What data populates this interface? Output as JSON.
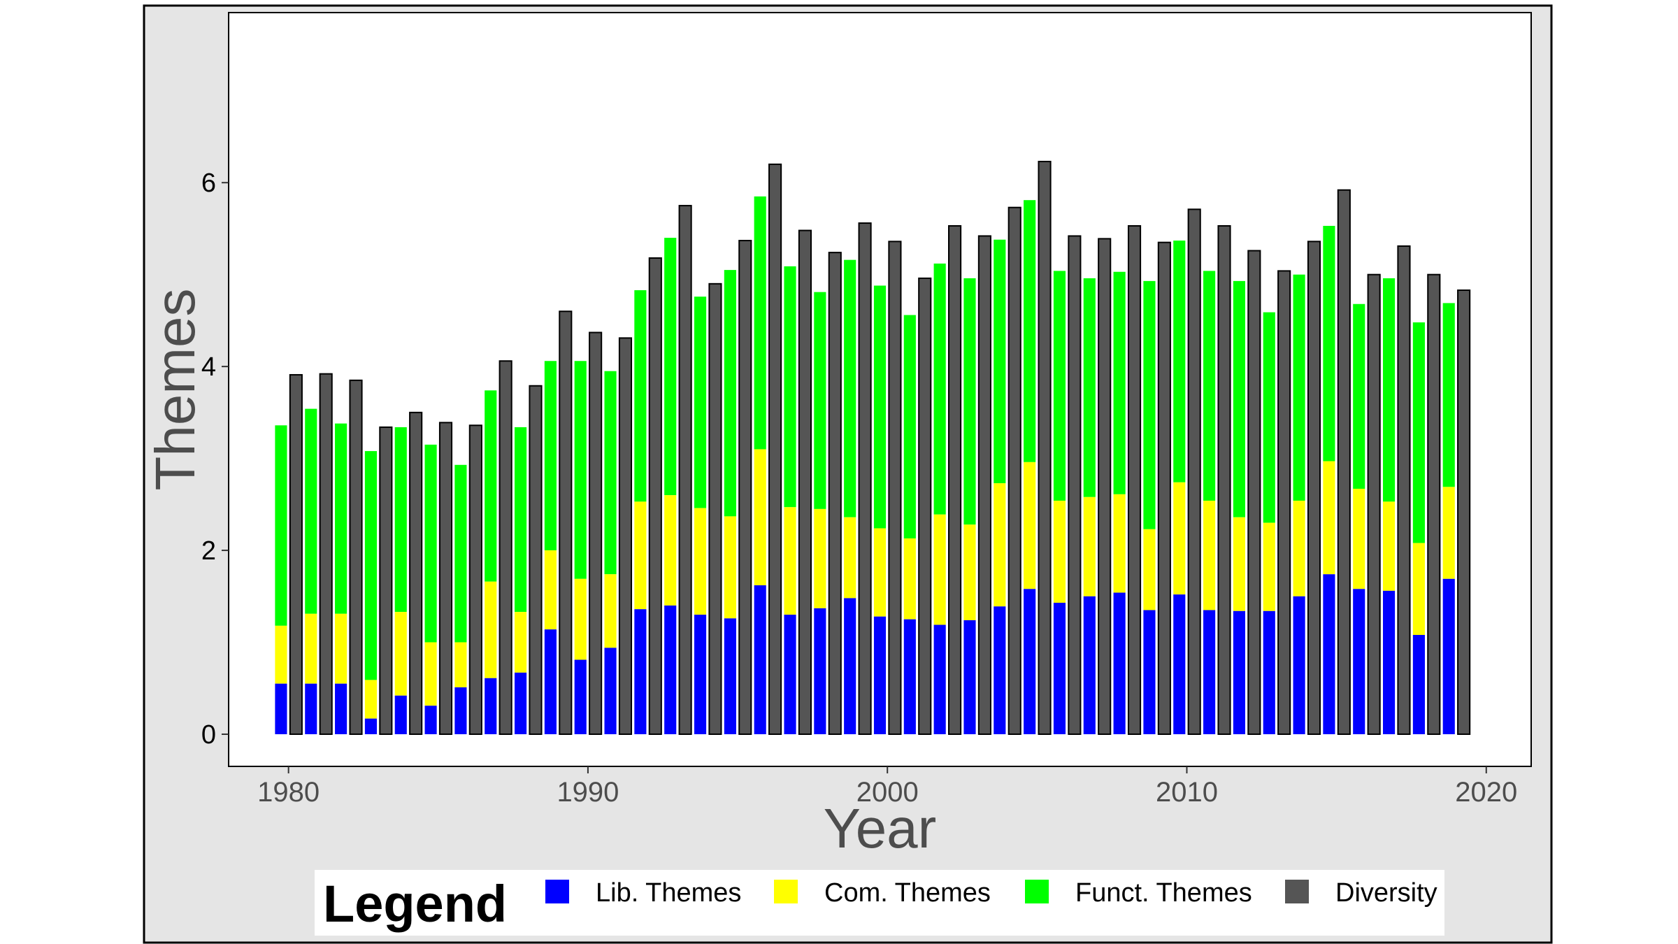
{
  "chart_data": {
    "type": "bar",
    "xlabel": "Year",
    "ylabel": "Themes",
    "xlim": [
      1978,
      2021.5
    ],
    "ylim": [
      -0.35,
      7.85
    ],
    "xticks": [
      1980,
      1990,
      2000,
      2010,
      2020
    ],
    "yticks": [
      0,
      2,
      4,
      6
    ],
    "legend_title": "Legend",
    "legend_position": "bottom",
    "series": [
      {
        "name": "Lib. Themes",
        "color": "#0000ff"
      },
      {
        "name": "Com. Themes",
        "color": "#ffff00"
      },
      {
        "name": "Funct. Themes",
        "color": "#00ff00"
      },
      {
        "name": "Diversity",
        "color": "#555555"
      }
    ],
    "years": [
      1980,
      1981,
      1982,
      1983,
      1984,
      1985,
      1986,
      1987,
      1988,
      1989,
      1990,
      1991,
      1992,
      1993,
      1994,
      1995,
      1996,
      1997,
      1998,
      1999,
      2000,
      2001,
      2002,
      2003,
      2004,
      2005,
      2006,
      2007,
      2008,
      2009,
      2010,
      2011,
      2012,
      2013,
      2014,
      2015,
      2016,
      2017,
      2018,
      2019
    ],
    "lib": [
      0.55,
      0.55,
      0.55,
      0.17,
      0.42,
      0.31,
      0.51,
      0.61,
      0.67,
      1.14,
      0.81,
      0.94,
      1.36,
      1.4,
      1.3,
      1.26,
      1.62,
      1.3,
      1.37,
      1.48,
      1.28,
      1.25,
      1.19,
      1.24,
      1.39,
      1.58,
      1.43,
      1.5,
      1.54,
      1.35,
      1.52,
      1.35,
      1.34,
      1.34,
      1.5,
      1.74,
      1.58,
      1.56,
      1.08,
      1.69
    ],
    "com": [
      1.18,
      1.31,
      1.31,
      0.59,
      1.33,
      1.0,
      1.0,
      1.66,
      1.33,
      2.0,
      1.69,
      1.74,
      2.53,
      2.6,
      2.46,
      2.37,
      3.1,
      2.47,
      2.45,
      2.36,
      2.24,
      2.13,
      2.39,
      2.28,
      2.73,
      2.96,
      2.54,
      2.58,
      2.61,
      2.23,
      2.74,
      2.54,
      2.36,
      2.3,
      2.54,
      2.97,
      2.67,
      2.53,
      2.08,
      2.69
    ],
    "funct": [
      3.36,
      3.54,
      3.38,
      3.08,
      3.34,
      3.15,
      2.93,
      3.74,
      3.34,
      4.06,
      4.06,
      3.95,
      4.83,
      5.4,
      4.76,
      5.05,
      5.85,
      5.09,
      4.81,
      5.16,
      4.88,
      4.56,
      5.12,
      4.96,
      5.38,
      5.81,
      5.04,
      4.96,
      5.03,
      4.93,
      5.37,
      5.04,
      4.93,
      4.59,
      5.0,
      5.53,
      4.68,
      4.96,
      4.48,
      4.69
    ],
    "diversity": [
      3.91,
      3.92,
      3.85,
      3.34,
      3.5,
      3.39,
      3.36,
      4.06,
      3.79,
      4.6,
      4.37,
      4.31,
      5.18,
      5.75,
      4.9,
      5.37,
      6.2,
      5.48,
      5.24,
      5.56,
      5.36,
      4.96,
      5.53,
      5.42,
      5.73,
      6.23,
      5.42,
      5.39,
      5.53,
      5.35,
      5.71,
      5.53,
      5.26,
      5.04,
      5.36,
      5.92,
      5.0,
      5.31,
      5.0,
      4.83
    ]
  }
}
